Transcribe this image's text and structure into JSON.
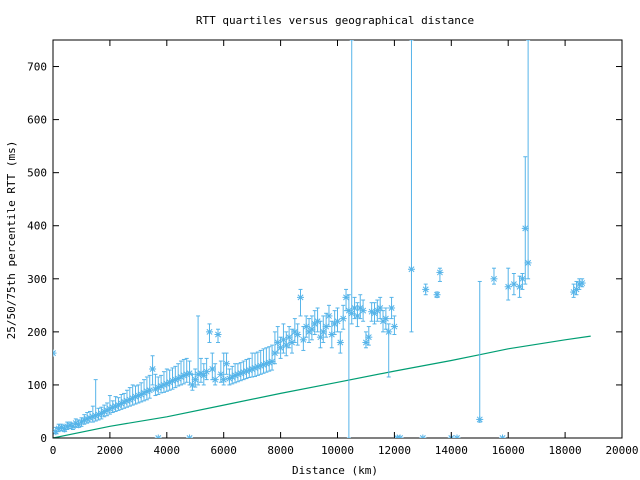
{
  "chart_data": {
    "type": "scatter",
    "title": "RTT quartiles versus geographical distance",
    "xlabel": "Distance (km)",
    "ylabel": "25/50/75th percentile RTT (ms)",
    "xlim": [
      0,
      20000
    ],
    "ylim": [
      0,
      750
    ],
    "x_ticks": [
      0,
      2000,
      4000,
      6000,
      8000,
      10000,
      12000,
      14000,
      16000,
      18000,
      20000
    ],
    "y_ticks": [
      0,
      100,
      200,
      300,
      400,
      500,
      600,
      700
    ],
    "x_tick_labels": [
      "0",
      "2000",
      "4000",
      "6000",
      "8000",
      "10000",
      "12000",
      "14000",
      "16000",
      "18000",
      "20000"
    ],
    "y_tick_labels": [
      "0",
      "100",
      "200",
      "300",
      "400",
      "500",
      "600",
      "700"
    ],
    "grid": false,
    "legend": "none",
    "colors": {
      "quartiles": "#56b4e9",
      "line": "#009e73",
      "frame": "#000000"
    },
    "series": [
      {
        "type": "errorbar",
        "marker": "asterisk",
        "points": [
          [
            0,
            160,
            160,
            160
          ],
          [
            100,
            12,
            8,
            20
          ],
          [
            200,
            18,
            12,
            26
          ],
          [
            300,
            20,
            14,
            26
          ],
          [
            400,
            17,
            12,
            24
          ],
          [
            500,
            22,
            16,
            30
          ],
          [
            600,
            24,
            18,
            30
          ],
          [
            700,
            22,
            16,
            28
          ],
          [
            800,
            28,
            20,
            36
          ],
          [
            900,
            25,
            20,
            34
          ],
          [
            1000,
            30,
            22,
            38
          ],
          [
            1100,
            34,
            26,
            44
          ],
          [
            1200,
            36,
            28,
            48
          ],
          [
            1300,
            38,
            30,
            50
          ],
          [
            1400,
            40,
            30,
            60
          ],
          [
            1500,
            42,
            32,
            110
          ],
          [
            1600,
            44,
            34,
            56
          ],
          [
            1700,
            46,
            36,
            58
          ],
          [
            1800,
            50,
            40,
            62
          ],
          [
            1900,
            52,
            42,
            66
          ],
          [
            2000,
            55,
            45,
            80
          ],
          [
            2100,
            58,
            48,
            70
          ],
          [
            2200,
            60,
            50,
            78
          ],
          [
            2300,
            62,
            52,
            76
          ],
          [
            2400,
            65,
            54,
            82
          ],
          [
            2500,
            68,
            56,
            84
          ],
          [
            2600,
            70,
            58,
            90
          ],
          [
            2700,
            72,
            60,
            95
          ],
          [
            2800,
            75,
            62,
            100
          ],
          [
            2900,
            78,
            64,
            98
          ],
          [
            3000,
            80,
            66,
            100
          ],
          [
            3100,
            82,
            68,
            104
          ],
          [
            3200,
            85,
            70,
            110
          ],
          [
            3300,
            88,
            72,
            115
          ],
          [
            3400,
            90,
            75,
            118
          ],
          [
            3500,
            130,
            100,
            155
          ],
          [
            3600,
            92,
            80,
            120
          ],
          [
            3700,
            95,
            82,
            115
          ],
          [
            3800,
            98,
            85,
            118
          ],
          [
            3900,
            100,
            86,
            125
          ],
          [
            4000,
            102,
            88,
            130
          ],
          [
            4100,
            105,
            90,
            128
          ],
          [
            4200,
            108,
            92,
            132
          ],
          [
            4300,
            110,
            95,
            135
          ],
          [
            4400,
            112,
            98,
            140
          ],
          [
            4500,
            115,
            100,
            145
          ],
          [
            4600,
            118,
            102,
            148
          ],
          [
            4700,
            120,
            105,
            150
          ],
          [
            4800,
            122,
            100,
            145
          ],
          [
            4900,
            100,
            90,
            120
          ],
          [
            5000,
            110,
            96,
            130
          ],
          [
            5100,
            120,
            100,
            230
          ],
          [
            5200,
            122,
            105,
            150
          ],
          [
            5300,
            118,
            100,
            140
          ],
          [
            5400,
            125,
            110,
            150
          ],
          [
            5500,
            200,
            180,
            215
          ],
          [
            5600,
            130,
            110,
            160
          ],
          [
            5700,
            110,
            100,
            140
          ],
          [
            5800,
            195,
            180,
            205
          ],
          [
            5900,
            120,
            105,
            145
          ],
          [
            6000,
            110,
            100,
            160
          ],
          [
            6100,
            140,
            120,
            160
          ],
          [
            6200,
            112,
            100,
            130
          ],
          [
            6300,
            115,
            102,
            135
          ],
          [
            6400,
            118,
            104,
            140
          ],
          [
            6500,
            120,
            106,
            140
          ],
          [
            6600,
            122,
            108,
            142
          ],
          [
            6700,
            124,
            110,
            145
          ],
          [
            6800,
            126,
            112,
            148
          ],
          [
            6900,
            128,
            114,
            150
          ],
          [
            7000,
            130,
            115,
            160
          ],
          [
            7100,
            132,
            116,
            160
          ],
          [
            7200,
            134,
            118,
            162
          ],
          [
            7300,
            136,
            120,
            165
          ],
          [
            7400,
            138,
            122,
            168
          ],
          [
            7500,
            140,
            124,
            170
          ],
          [
            7600,
            142,
            126,
            172
          ],
          [
            7700,
            144,
            128,
            175
          ],
          [
            7800,
            160,
            140,
            200
          ],
          [
            7900,
            180,
            160,
            210
          ],
          [
            8000,
            170,
            150,
            190
          ],
          [
            8100,
            185,
            160,
            215
          ],
          [
            8200,
            175,
            155,
            200
          ],
          [
            8300,
            190,
            170,
            210
          ],
          [
            8400,
            180,
            160,
            205
          ],
          [
            8500,
            200,
            180,
            225
          ],
          [
            8600,
            195,
            175,
            215
          ],
          [
            8700,
            265,
            230,
            280
          ],
          [
            8800,
            185,
            165,
            210
          ],
          [
            8900,
            210,
            190,
            230
          ],
          [
            9000,
            200,
            180,
            225
          ],
          [
            9100,
            205,
            185,
            230
          ],
          [
            9200,
            215,
            195,
            240
          ],
          [
            9300,
            220,
            200,
            245
          ],
          [
            9400,
            190,
            170,
            220
          ],
          [
            9500,
            200,
            180,
            230
          ],
          [
            9600,
            210,
            190,
            235
          ],
          [
            9700,
            230,
            210,
            250
          ],
          [
            9800,
            195,
            170,
            220
          ],
          [
            9900,
            215,
            195,
            240
          ],
          [
            10000,
            220,
            200,
            245
          ],
          [
            10100,
            180,
            160,
            200
          ],
          [
            10200,
            225,
            205,
            250
          ],
          [
            10300,
            265,
            240,
            280
          ],
          [
            10400,
            240,
            0,
            270
          ],
          [
            10500,
            235,
            215,
            750
          ],
          [
            10600,
            245,
            225,
            265
          ],
          [
            10700,
            230,
            210,
            255
          ],
          [
            10800,
            245,
            225,
            270
          ],
          [
            10900,
            240,
            220,
            260
          ],
          [
            11000,
            180,
            170,
            200
          ],
          [
            11100,
            190,
            175,
            210
          ],
          [
            11200,
            238,
            220,
            255
          ],
          [
            11300,
            235,
            215,
            255
          ],
          [
            11400,
            240,
            220,
            260
          ],
          [
            11500,
            245,
            225,
            265
          ],
          [
            11600,
            220,
            200,
            240
          ],
          [
            11700,
            225,
            205,
            245
          ],
          [
            11800,
            200,
            115,
            215
          ],
          [
            11900,
            245,
            225,
            265
          ],
          [
            12000,
            210,
            195,
            230
          ],
          [
            12100,
            0,
            0,
            0
          ],
          [
            12200,
            0,
            0,
            0
          ],
          [
            12600,
            318,
            200,
            750
          ],
          [
            13000,
            0,
            0,
            0
          ],
          [
            13100,
            280,
            270,
            290
          ],
          [
            13500,
            270,
            265,
            275
          ],
          [
            13600,
            312,
            295,
            320
          ],
          [
            14000,
            0,
            0,
            0
          ],
          [
            14200,
            0,
            0,
            0
          ],
          [
            15000,
            35,
            30,
            295
          ],
          [
            15500,
            300,
            290,
            320
          ],
          [
            15800,
            0,
            0,
            0
          ],
          [
            16000,
            285,
            260,
            320
          ],
          [
            16200,
            290,
            270,
            310
          ],
          [
            16400,
            285,
            265,
            305
          ],
          [
            16500,
            300,
            280,
            310
          ],
          [
            16600,
            395,
            290,
            530
          ],
          [
            16700,
            330,
            300,
            750
          ],
          [
            18300,
            275,
            265,
            290
          ],
          [
            18400,
            280,
            270,
            295
          ],
          [
            18500,
            290,
            280,
            300
          ],
          [
            18600,
            292,
            285,
            300
          ],
          [
            3700,
            0,
            0,
            0
          ],
          [
            4800,
            0,
            0,
            0
          ]
        ]
      },
      {
        "type": "line",
        "points": [
          [
            0,
            0
          ],
          [
            2000,
            22
          ],
          [
            4000,
            40
          ],
          [
            6000,
            62
          ],
          [
            8000,
            84
          ],
          [
            10000,
            105
          ],
          [
            12000,
            126
          ],
          [
            14000,
            146
          ],
          [
            15000,
            157
          ],
          [
            16000,
            168
          ],
          [
            18000,
            185
          ],
          [
            18900,
            192
          ]
        ]
      }
    ]
  }
}
